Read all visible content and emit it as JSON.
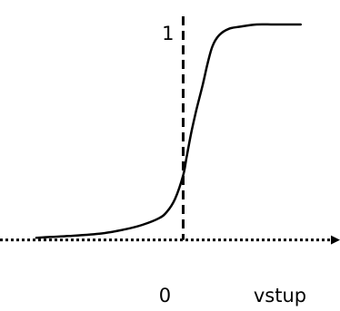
{
  "chart_data": {
    "type": "line",
    "title": "",
    "xlabel": "vstup",
    "ylabel": "",
    "x_ticks": [
      {
        "value": 0,
        "label": "0"
      }
    ],
    "y_ticks": [
      {
        "value": 1,
        "label": "1"
      }
    ],
    "xlim": [
      -1.0,
      0.95
    ],
    "ylim": [
      -0.17,
      1.08
    ],
    "grid": false,
    "legend": "none",
    "x_axis_style": "dotted-arrow",
    "y_axis_style": "dashed",
    "curve_color": "#000000",
    "series": [
      {
        "x": [
          -0.9,
          -0.7,
          -0.5,
          -0.35,
          -0.25,
          -0.15,
          -0.1,
          -0.05,
          0.0,
          0.02,
          0.05,
          0.08,
          0.12,
          0.15,
          0.18,
          0.22,
          0.28,
          0.35,
          0.45,
          0.55,
          0.65,
          0.72
        ],
        "y": [
          0.01,
          0.018,
          0.03,
          0.05,
          0.07,
          0.1,
          0.13,
          0.19,
          0.3,
          0.38,
          0.5,
          0.6,
          0.72,
          0.82,
          0.9,
          0.95,
          0.98,
          0.99,
          1.0,
          1.0,
          1.0,
          1.0
        ]
      }
    ]
  }
}
